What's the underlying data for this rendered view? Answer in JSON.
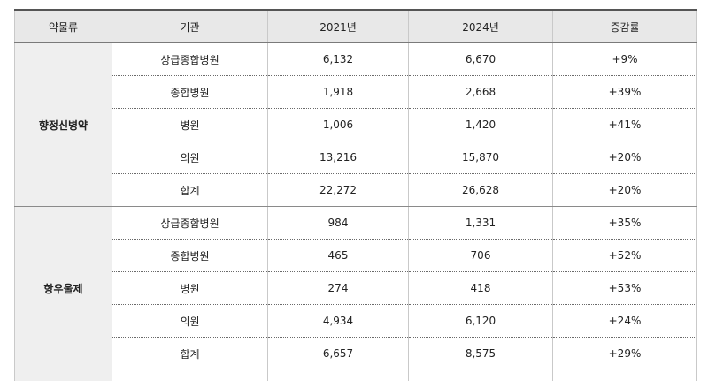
{
  "table": {
    "headers": [
      "약물류",
      "기관",
      "2021년",
      "2024년",
      "증감률"
    ],
    "groups": [
      {
        "name": "향정신병약",
        "rows": [
          {
            "institution": "상급종합병원",
            "y2021": "6,132",
            "y2024": "6,670",
            "change": "+9%"
          },
          {
            "institution": "종합병원",
            "y2021": "1,918",
            "y2024": "2,668",
            "change": "+39%"
          },
          {
            "institution": "병원",
            "y2021": "1,006",
            "y2024": "1,420",
            "change": "+41%"
          },
          {
            "institution": "의원",
            "y2021": "13,216",
            "y2024": "15,870",
            "change": "+20%"
          },
          {
            "institution": "합계",
            "y2021": "22,272",
            "y2024": "26,628",
            "change": "+20%"
          }
        ]
      },
      {
        "name": "항우울제",
        "rows": [
          {
            "institution": "상급종합병원",
            "y2021": "984",
            "y2024": "1,331",
            "change": "+35%"
          },
          {
            "institution": "종합병원",
            "y2021": "465",
            "y2024": "706",
            "change": "+52%"
          },
          {
            "institution": "병원",
            "y2021": "274",
            "y2024": "418",
            "change": "+53%"
          },
          {
            "institution": "의원",
            "y2021": "4,934",
            "y2024": "6,120",
            "change": "+24%"
          },
          {
            "institution": "합계",
            "y2021": "6,657",
            "y2024": "8,575",
            "change": "+29%"
          }
        ]
      }
    ]
  }
}
